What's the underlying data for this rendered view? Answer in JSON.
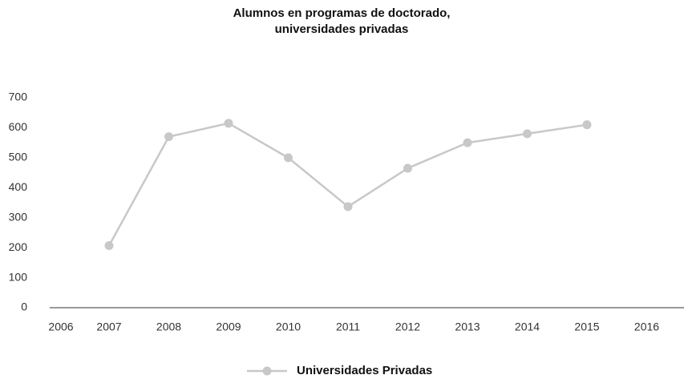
{
  "chart_data": {
    "type": "line",
    "title": [
      "Alumnos en programas de doctorado,",
      "universidades privadas"
    ],
    "categories": [
      "2006",
      "2007",
      "2008",
      "2009",
      "2010",
      "2011",
      "2012",
      "2013",
      "2014",
      "2015",
      "2016"
    ],
    "series": [
      {
        "name": "Universidades Privadas",
        "color": "#c8c8c8",
        "values": [
          null,
          207,
          570,
          615,
          500,
          337,
          465,
          550,
          580,
          610,
          null
        ]
      }
    ],
    "ylim": [
      0,
      700
    ],
    "yticks": [
      0,
      100,
      200,
      300,
      400,
      500,
      600,
      700
    ],
    "grid": false,
    "legend": "bottom"
  }
}
